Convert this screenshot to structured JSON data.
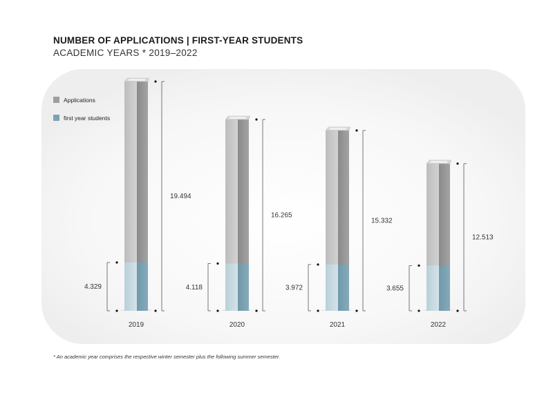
{
  "chart_data": {
    "type": "bar",
    "title": "NUMBER OF APPLICATIONS | FIRST-YEAR STUDENTS",
    "subtitle": "ACADEMIC YEARS * 2019–2022",
    "categories": [
      "2019",
      "2020",
      "2021",
      "2022"
    ],
    "series": [
      {
        "name": "Applications",
        "values": [
          19494,
          16265,
          15332,
          12513
        ],
        "labels": [
          "19.494",
          "16.265",
          "15.332",
          "12.513"
        ],
        "color": "#9e9e9e"
      },
      {
        "name": "first year students",
        "values": [
          4329,
          4118,
          3972,
          3655
        ],
        "labels": [
          "4.329",
          "4.118",
          "3.972",
          "3.655"
        ],
        "color": "#7ba3b3"
      }
    ],
    "legend_position": "top-left",
    "grid": false,
    "footnote": "* An academic year comprises the respective winter semester plus the following summer semester."
  }
}
